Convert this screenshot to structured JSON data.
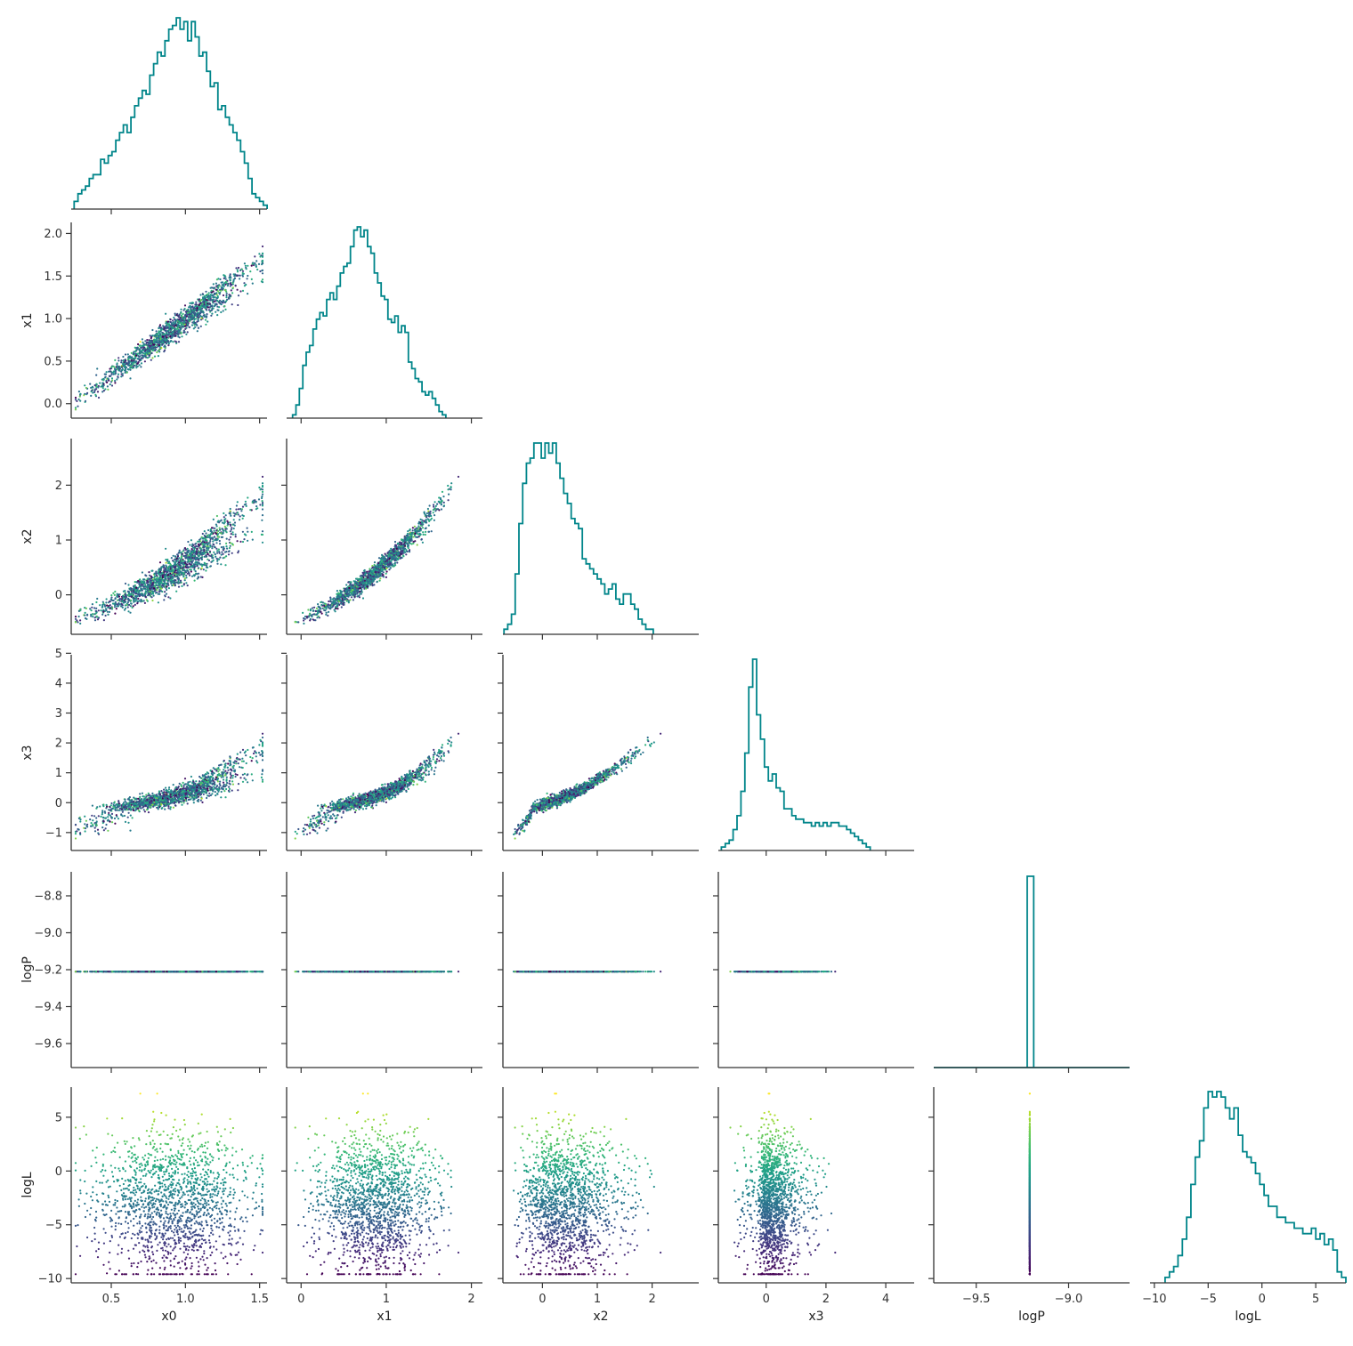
{
  "chart_data": {
    "type": "corner",
    "variables": [
      "x0",
      "x1",
      "x2",
      "x3",
      "logP",
      "logL"
    ],
    "histogram_color": "#00858a",
    "scatter_colormap": "viridis",
    "axes": {
      "x0": {
        "range": [
          0.23,
          1.55
        ],
        "ticks": [
          0.5,
          1.0,
          1.5
        ],
        "tick_labels": [
          "0.5",
          "1.0",
          "1.5"
        ]
      },
      "x1": {
        "range": [
          -0.17,
          2.13
        ],
        "ticks": [
          0,
          1,
          2
        ],
        "tick_labels": [
          "0",
          "1",
          "2"
        ],
        "ticks_y": [
          0.0,
          0.5,
          1.0,
          1.5,
          2.0
        ],
        "tick_labels_y": [
          "0.0",
          "0.5",
          "1.0",
          "1.5",
          "2.0"
        ]
      },
      "x2": {
        "range": [
          -0.72,
          2.85
        ],
        "ticks": [
          0,
          1,
          2
        ],
        "tick_labels": [
          "0",
          "1",
          "2"
        ],
        "ticks_y": [
          0,
          1,
          2
        ],
        "tick_labels_y": [
          "0",
          "1",
          "2"
        ]
      },
      "x3": {
        "range": [
          -1.6,
          4.95
        ],
        "ticks": [
          0,
          2,
          4
        ],
        "tick_labels": [
          "0",
          "2",
          "4"
        ],
        "ticks_y": [
          -1,
          0,
          1,
          2,
          3,
          4,
          5
        ],
        "tick_labels_y": [
          "−1",
          "0",
          "1",
          "2",
          "3",
          "4",
          "5"
        ]
      },
      "logP": {
        "range": [
          -9.73,
          -8.67
        ],
        "ticks": [
          -9.5,
          -9.0
        ],
        "tick_labels": [
          "−9.5",
          "−9.0"
        ],
        "ticks_y": [
          -9.6,
          -9.4,
          -9.2,
          -9.0,
          -8.8
        ],
        "tick_labels_y": [
          "−9.6",
          "−9.4",
          "−9.2",
          "−9.0",
          "−8.8"
        ]
      },
      "logL": {
        "range": [
          -10.4,
          7.8
        ],
        "ticks": [
          -10,
          -5,
          0,
          5
        ],
        "tick_labels": [
          "−10",
          "−5",
          "0",
          "5"
        ],
        "ticks_y": [
          -10,
          -5,
          0,
          5
        ],
        "tick_labels_y": [
          "−10",
          "−5",
          "0",
          "5"
        ]
      }
    },
    "logP_value": -9.21,
    "histograms": {
      "x0": {
        "bin_start": 0.25,
        "bin_width": 0.0255,
        "counts": [
          2,
          4,
          5,
          6,
          8,
          9,
          9,
          13,
          12,
          14,
          15,
          18,
          20,
          22,
          20,
          24,
          27,
          29,
          31,
          30,
          35,
          38,
          41,
          40,
          44,
          47,
          48,
          50,
          47,
          49,
          44,
          49,
          45,
          40,
          41,
          36,
          32,
          33,
          26,
          27,
          24,
          22,
          20,
          18,
          15,
          12,
          8,
          4,
          3,
          2,
          1
        ]
      },
      "x1": {
        "bin_start": -0.1,
        "bin_width": 0.04,
        "counts": [
          1,
          4,
          9,
          16,
          20,
          22,
          27,
          30,
          32,
          31,
          36,
          38,
          36,
          40,
          44,
          46,
          47,
          52,
          57,
          58,
          55,
          57,
          52,
          50,
          44,
          41,
          37,
          36,
          30,
          29,
          31,
          26,
          28,
          26,
          17,
          15,
          12,
          11,
          8,
          7,
          8,
          6,
          4,
          2,
          1
        ]
      },
      "x2": {
        "bin_start": -0.7,
        "bin_width": 0.068,
        "counts": [
          1,
          2,
          4,
          12,
          22,
          30,
          34,
          35,
          38,
          38,
          35,
          38,
          36,
          38,
          34,
          31,
          28,
          26,
          23,
          22,
          21,
          15,
          14,
          13,
          12,
          11,
          10,
          8,
          9,
          10,
          7,
          6,
          8,
          8,
          6,
          5,
          3,
          2,
          1,
          1
        ]
      },
      "x3": {
        "bin_start": -1.5,
        "bin_width": 0.131,
        "counts": [
          1,
          2,
          3,
          6,
          10,
          17,
          28,
          47,
          55,
          39,
          32,
          24,
          20,
          22,
          18,
          17,
          12,
          12,
          10,
          9,
          9,
          8,
          8,
          7,
          8,
          7,
          8,
          7,
          8,
          8,
          7,
          7,
          6,
          5,
          4,
          3,
          2,
          1
        ]
      },
      "logP": {
        "bin_start": -9.224,
        "bin_width": 0.035,
        "counts": [
          1
        ]
      },
      "logL": {
        "bin_start": -9.0,
        "bin_width": 0.4,
        "counts": [
          1,
          2,
          3,
          5,
          8,
          12,
          18,
          23,
          26,
          32,
          35,
          34,
          35,
          34,
          32,
          30,
          32,
          27,
          24,
          23,
          22,
          20,
          18,
          16,
          14,
          14,
          12,
          12,
          11,
          11,
          10,
          10,
          9,
          9,
          10,
          8,
          9,
          7,
          8,
          6,
          2,
          1
        ]
      }
    }
  }
}
